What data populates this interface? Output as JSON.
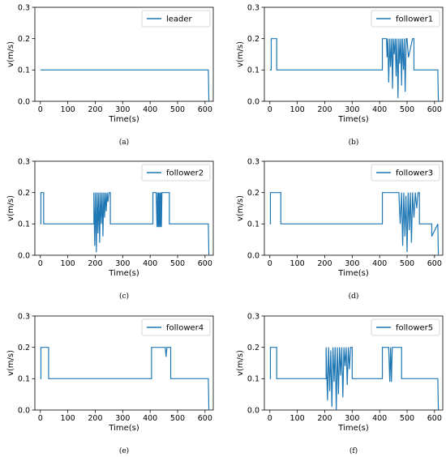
{
  "chart_data": [
    {
      "type": "line",
      "caption": "(a)",
      "xlabel": "Time(s)",
      "ylabel": "v(m/s)",
      "xlim": [
        -20,
        630
      ],
      "ylim": [
        0,
        0.3
      ],
      "xticks": [
        0,
        100,
        200,
        300,
        400,
        500,
        600
      ],
      "yticks": [
        0.0,
        0.1,
        0.2,
        0.3
      ],
      "legend_position": "top-right",
      "color": "#1f77b4",
      "series": [
        {
          "name": "leader",
          "x": [
            0,
            612,
            614
          ],
          "y": [
            0.1,
            0.1,
            0.0
          ]
        }
      ]
    },
    {
      "type": "line",
      "caption": "(b)",
      "xlabel": "Time(s)",
      "ylabel": "v(m/s)",
      "xlim": [
        -20,
        630
      ],
      "ylim": [
        0,
        0.3
      ],
      "xticks": [
        0,
        100,
        200,
        300,
        400,
        500,
        600
      ],
      "yticks": [
        0.0,
        0.1,
        0.2,
        0.3
      ],
      "legend_position": "top-right",
      "color": "#1f77b4",
      "series": [
        {
          "name": "follower1",
          "x": [
            0,
            5,
            5,
            25,
            25,
            410,
            410,
            425,
            427,
            430,
            433,
            437,
            440,
            444,
            447,
            450,
            453,
            457,
            460,
            463,
            467,
            470,
            473,
            477,
            480,
            483,
            487,
            490,
            493,
            497,
            500,
            505,
            520,
            525,
            525,
            612,
            614
          ],
          "y": [
            0.1,
            0.1,
            0.2,
            0.2,
            0.1,
            0.1,
            0.2,
            0.2,
            0.14,
            0.2,
            0.06,
            0.2,
            0.11,
            0.2,
            0.04,
            0.2,
            0.15,
            0.2,
            0.08,
            0.2,
            0.01,
            0.2,
            0.12,
            0.2,
            0.05,
            0.2,
            0.1,
            0.2,
            0.03,
            0.2,
            0.2,
            0.14,
            0.2,
            0.2,
            0.1,
            0.1,
            0.0
          ]
        }
      ]
    },
    {
      "type": "line",
      "caption": "(c)",
      "xlabel": "Time(s)",
      "ylabel": "v(m/s)",
      "xlim": [
        -20,
        630
      ],
      "ylim": [
        0,
        0.3
      ],
      "xticks": [
        0,
        100,
        200,
        300,
        400,
        500,
        600
      ],
      "yticks": [
        0.0,
        0.1,
        0.2,
        0.3
      ],
      "legend_position": "top-right",
      "color": "#1f77b4",
      "series": [
        {
          "name": "follower2",
          "x": [
            0,
            2,
            2,
            12,
            12,
            195,
            195,
            198,
            201,
            204,
            207,
            210,
            213,
            216,
            219,
            222,
            225,
            228,
            231,
            234,
            237,
            240,
            243,
            246,
            250,
            255,
            255,
            410,
            410,
            422,
            425,
            427,
            429,
            431,
            433,
            435,
            437,
            439,
            441,
            443,
            450,
            470,
            470,
            612,
            614
          ],
          "y": [
            0.1,
            0.1,
            0.2,
            0.2,
            0.1,
            0.1,
            0.2,
            0.03,
            0.2,
            0.01,
            0.2,
            0.07,
            0.2,
            0.04,
            0.2,
            0.1,
            0.2,
            0.06,
            0.2,
            0.12,
            0.2,
            0.14,
            0.2,
            0.17,
            0.2,
            0.2,
            0.1,
            0.1,
            0.2,
            0.2,
            0.09,
            0.2,
            0.09,
            0.2,
            0.09,
            0.2,
            0.09,
            0.2,
            0.09,
            0.2,
            0.2,
            0.2,
            0.1,
            0.1,
            0.0
          ]
        }
      ]
    },
    {
      "type": "line",
      "caption": "(d)",
      "xlabel": "Time(s)",
      "ylabel": "v(m/s)",
      "xlim": [
        -20,
        630
      ],
      "ylim": [
        0,
        0.3
      ],
      "xticks": [
        0,
        100,
        200,
        300,
        400,
        500,
        600
      ],
      "yticks": [
        0.0,
        0.1,
        0.2,
        0.3
      ],
      "legend_position": "top-right",
      "color": "#1f77b4",
      "series": [
        {
          "name": "follower3",
          "x": [
            0,
            2,
            2,
            40,
            40,
            410,
            410,
            470,
            475,
            480,
            484,
            488,
            492,
            496,
            500,
            504,
            508,
            512,
            516,
            520,
            525,
            530,
            535,
            540,
            545,
            545,
            590,
            590,
            612,
            614
          ],
          "y": [
            0.1,
            0.1,
            0.2,
            0.2,
            0.1,
            0.1,
            0.2,
            0.2,
            0.1,
            0.2,
            0.03,
            0.2,
            0.06,
            0.19,
            0.01,
            0.2,
            0.08,
            0.2,
            0.04,
            0.2,
            0.12,
            0.2,
            0.15,
            0.2,
            0.2,
            0.1,
            0.1,
            0.06,
            0.1,
            0.0
          ]
        }
      ]
    },
    {
      "type": "line",
      "caption": "(e)",
      "xlabel": "Time(s)",
      "ylabel": "v(m/s)",
      "xlim": [
        -20,
        630
      ],
      "ylim": [
        0,
        0.3
      ],
      "xticks": [
        0,
        100,
        200,
        300,
        400,
        500,
        600
      ],
      "yticks": [
        0.0,
        0.1,
        0.2,
        0.3
      ],
      "legend_position": "top-right",
      "color": "#1f77b4",
      "series": [
        {
          "name": "follower4",
          "x": [
            0,
            2,
            2,
            30,
            30,
            405,
            405,
            455,
            458,
            461,
            475,
            475,
            612,
            614
          ],
          "y": [
            0.1,
            0.1,
            0.2,
            0.2,
            0.1,
            0.1,
            0.2,
            0.2,
            0.17,
            0.2,
            0.2,
            0.1,
            0.1,
            0.0
          ]
        }
      ]
    },
    {
      "type": "line",
      "caption": "(f)",
      "xlabel": "Time(s)",
      "ylabel": "v(m/s)",
      "xlim": [
        -20,
        630
      ],
      "ylim": [
        0,
        0.3
      ],
      "xticks": [
        0,
        100,
        200,
        300,
        400,
        500,
        600
      ],
      "yticks": [
        0.0,
        0.1,
        0.2,
        0.3
      ],
      "legend_position": "top-right",
      "color": "#1f77b4",
      "series": [
        {
          "name": "follower5",
          "x": [
            0,
            2,
            2,
            25,
            25,
            205,
            205,
            210,
            214,
            218,
            222,
            226,
            230,
            234,
            238,
            242,
            246,
            250,
            254,
            258,
            262,
            266,
            270,
            274,
            278,
            282,
            286,
            290,
            294,
            300,
            300,
            410,
            410,
            433,
            437,
            440,
            443,
            446,
            455,
            480,
            480,
            612,
            614
          ],
          "y": [
            0.1,
            0.1,
            0.2,
            0.2,
            0.1,
            0.1,
            0.2,
            0.03,
            0.2,
            0.06,
            0.19,
            0.01,
            0.2,
            0.09,
            0.2,
            0.0,
            0.2,
            0.05,
            0.2,
            0.11,
            0.2,
            0.04,
            0.2,
            0.14,
            0.2,
            0.08,
            0.2,
            0.13,
            0.2,
            0.2,
            0.1,
            0.1,
            0.2,
            0.2,
            0.09,
            0.2,
            0.09,
            0.2,
            0.2,
            0.2,
            0.1,
            0.1,
            0.0
          ]
        }
      ]
    }
  ]
}
